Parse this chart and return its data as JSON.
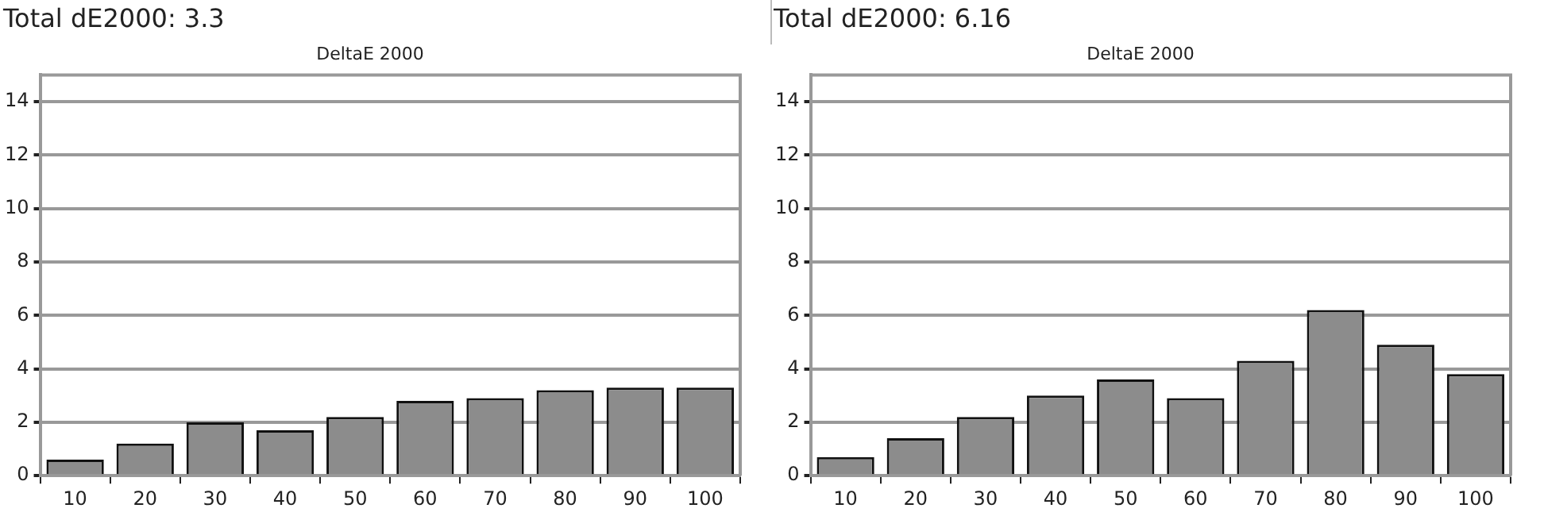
{
  "chart_data": [
    {
      "type": "bar",
      "title": "Total dE2000: 3.3",
      "subtitle": "DeltaE 2000",
      "categories": [
        "10",
        "20",
        "30",
        "40",
        "50",
        "60",
        "70",
        "80",
        "90",
        "100"
      ],
      "values": [
        0.6,
        1.2,
        2.0,
        1.7,
        2.2,
        2.8,
        2.9,
        3.2,
        3.3,
        3.3
      ],
      "color": "#8c8c8c",
      "ylim": [
        0,
        15
      ],
      "yticks": [
        0,
        2,
        4,
        6,
        8,
        10,
        12,
        14
      ],
      "grid": "y",
      "legend": false
    },
    {
      "type": "bar",
      "title": "Total dE2000: 6.16",
      "subtitle": "DeltaE 2000",
      "categories": [
        "10",
        "20",
        "30",
        "40",
        "50",
        "60",
        "70",
        "80",
        "90",
        "100"
      ],
      "values": [
        0.7,
        1.4,
        2.2,
        3.0,
        3.6,
        2.9,
        4.3,
        6.2,
        4.9,
        3.8
      ],
      "color": "#8c8c8c",
      "ylim": [
        0,
        15
      ],
      "yticks": [
        0,
        2,
        4,
        6,
        8,
        10,
        12,
        14
      ],
      "grid": "y",
      "legend": false
    }
  ]
}
